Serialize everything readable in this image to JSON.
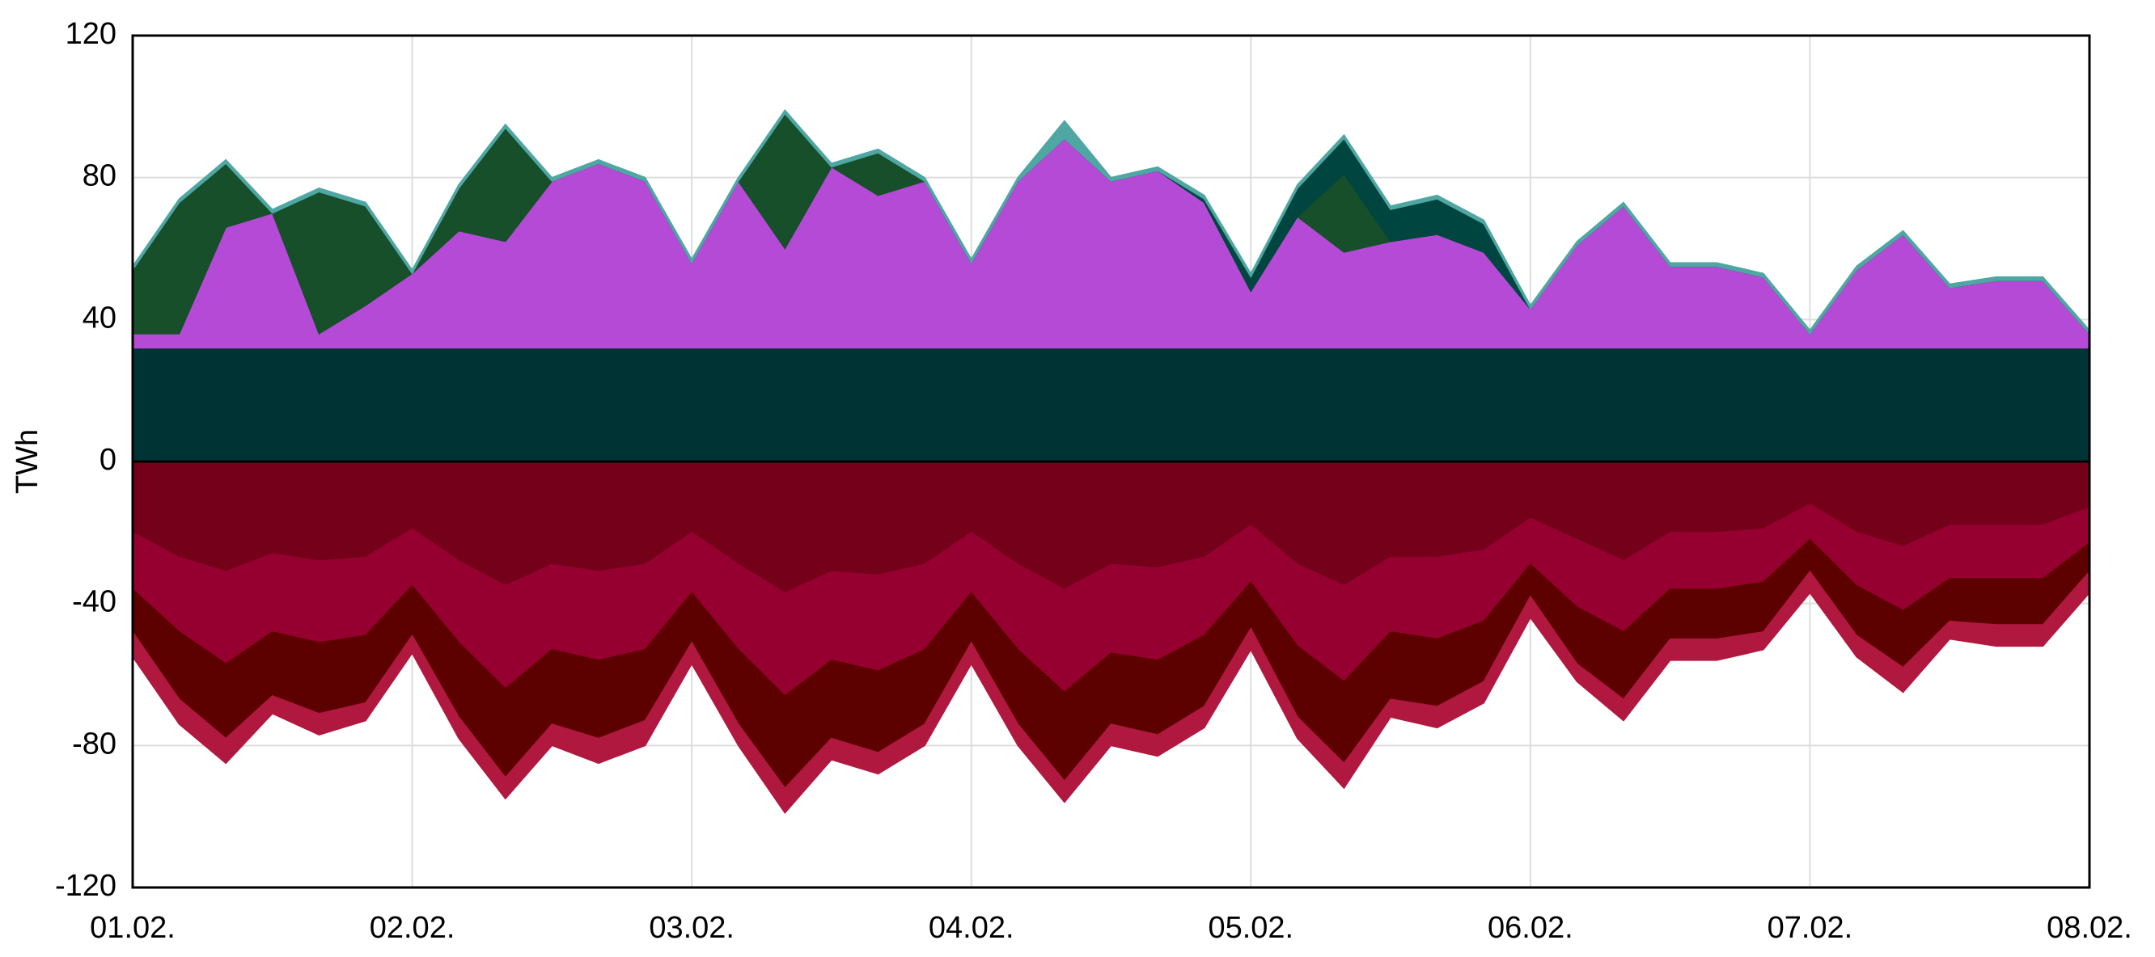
{
  "chart_data": {
    "type": "stacked_area",
    "y_label": "TWh",
    "x": [
      0,
      1,
      2,
      3,
      4,
      5,
      6,
      7,
      8,
      9,
      10,
      11,
      12,
      13,
      14,
      15,
      16,
      17,
      18,
      19,
      20,
      21,
      22,
      23,
      24,
      25,
      26,
      27,
      28,
      29,
      30,
      31,
      32,
      33,
      34,
      35,
      36,
      37,
      38,
      39,
      40,
      41,
      42
    ],
    "xlim": [
      0,
      42
    ],
    "xticks": [
      {
        "value": 0,
        "label": "01.02."
      },
      {
        "value": 6,
        "label": "02.02."
      },
      {
        "value": 12,
        "label": "03.02."
      },
      {
        "value": 18,
        "label": "04.02."
      },
      {
        "value": 24,
        "label": "05.02."
      },
      {
        "value": 30,
        "label": "06.02."
      },
      {
        "value": 36,
        "label": "07.02."
      },
      {
        "value": 42,
        "label": "08.02."
      }
    ],
    "ylim": [
      -120,
      120
    ],
    "yticks": [
      -120,
      -80,
      -40,
      0,
      40,
      80,
      120
    ],
    "grid": true,
    "series": [
      {
        "color": "#003333",
        "values": [
          32,
          32,
          32,
          32,
          32,
          32,
          32,
          32,
          32,
          32,
          32,
          32,
          32,
          32,
          32,
          32,
          32,
          32,
          32,
          32,
          32,
          32,
          32,
          32,
          32,
          32,
          32,
          32,
          32,
          32,
          32,
          32,
          32,
          32,
          32,
          32,
          32,
          32,
          32,
          32,
          32,
          32,
          32
        ]
      },
      {
        "color": "#b44ad6",
        "values": [
          4,
          4,
          34,
          38,
          4,
          12,
          21,
          33,
          30,
          47,
          52,
          47,
          24,
          47,
          28,
          51,
          43,
          47,
          24,
          47,
          59,
          47,
          50,
          41,
          16,
          37,
          27,
          30,
          32,
          27,
          11,
          29,
          40,
          23,
          23,
          20,
          4,
          22,
          32,
          17,
          19,
          19,
          4
        ]
      },
      {
        "color": "#174f2a",
        "values": [
          18,
          37,
          18,
          0,
          40,
          28,
          0,
          12,
          32,
          0,
          0,
          0,
          0,
          0,
          38,
          0,
          12,
          0,
          0,
          0,
          0,
          0,
          0,
          0,
          0,
          0,
          22,
          0,
          0,
          0,
          0,
          0,
          0,
          0,
          0,
          0,
          0,
          0,
          0,
          0,
          0,
          0,
          0
        ]
      },
      {
        "color": "#00453f",
        "values": [
          0,
          0,
          0,
          0,
          0,
          0,
          0,
          0,
          0,
          0,
          0,
          0,
          0,
          0,
          0,
          0,
          0,
          0,
          0,
          0,
          0,
          0,
          0,
          1,
          4,
          8,
          10,
          9,
          10,
          8,
          0,
          0,
          0,
          0,
          0,
          0,
          0,
          0,
          0,
          0,
          0,
          0,
          0
        ]
      },
      {
        "color": "#4fa7a3",
        "values": [
          1,
          1,
          1,
          1,
          1,
          1,
          1,
          1,
          1,
          1,
          1,
          1,
          1,
          1,
          1,
          1,
          1,
          1,
          1,
          1,
          5,
          1,
          1,
          1,
          1,
          1,
          1,
          1,
          1,
          1,
          1,
          1,
          1,
          1,
          1,
          1,
          1,
          1,
          1,
          1,
          1,
          1,
          1
        ]
      },
      {
        "color": "#75001a",
        "values": [
          -20,
          -27,
          -31,
          -26,
          -28,
          -27,
          -19,
          -28,
          -35,
          -29,
          -31,
          -29,
          -20,
          -29,
          -37,
          -31,
          -32,
          -29,
          -20,
          -29,
          -36,
          -29,
          -30,
          -27,
          -18,
          -29,
          -35,
          -27,
          -27,
          -25,
          -16,
          -22,
          -28,
          -20,
          -20,
          -19,
          -12,
          -20,
          -24,
          -18,
          -18,
          -18,
          -13
        ]
      },
      {
        "color": "#960030",
        "values": [
          -16,
          -21,
          -26,
          -22,
          -23,
          -22,
          -16,
          -23,
          -29,
          -24,
          -25,
          -24,
          -17,
          -24,
          -29,
          -25,
          -27,
          -24,
          -17,
          -24,
          -29,
          -25,
          -26,
          -22,
          -16,
          -23,
          -27,
          -21,
          -23,
          -20,
          -13,
          -19,
          -20,
          -16,
          -16,
          -15,
          -10,
          -15,
          -18,
          -15,
          -15,
          -15,
          -10
        ]
      },
      {
        "color": "#5c0000",
        "values": [
          -12,
          -19,
          -21,
          -18,
          -20,
          -19,
          -14,
          -21,
          -25,
          -21,
          -22,
          -20,
          -14,
          -21,
          -26,
          -22,
          -23,
          -21,
          -14,
          -21,
          -25,
          -20,
          -21,
          -20,
          -13,
          -20,
          -23,
          -19,
          -19,
          -17,
          -9,
          -16,
          -19,
          -14,
          -14,
          -14,
          -9,
          -14,
          -16,
          -12,
          -13,
          -13,
          -8
        ]
      },
      {
        "color": "#b0183f",
        "values": [
          -7,
          -7,
          -7,
          -5,
          -6,
          -5,
          -5,
          -6,
          -6,
          -6,
          -7,
          -7,
          -6,
          -6,
          -7,
          -6,
          -6,
          -6,
          -6,
          -6,
          -6,
          -6,
          -6,
          -6,
          -6,
          -6,
          -7,
          -5,
          -6,
          -6,
          -6,
          -5,
          -6,
          -6,
          -6,
          -5,
          -6,
          -6,
          -7,
          -5,
          -6,
          -6,
          -6
        ]
      }
    ]
  }
}
